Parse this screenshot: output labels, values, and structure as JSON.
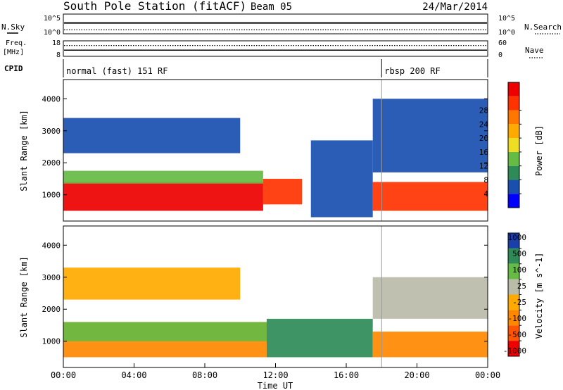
{
  "chart_data": [
    {
      "type": "line",
      "title": "South Pole Station (fitACF)",
      "beam": "Beam 05",
      "date": "24/Mar/2014",
      "left_label": "N.Sky",
      "right_label": "N.Search",
      "y_ticks_left": [
        "10^5",
        "10^0"
      ],
      "y_ticks_right": [
        "10^5",
        "10^0"
      ],
      "series": [
        {
          "name": "N.Sky",
          "style": "solid",
          "level": 0.55
        },
        {
          "name": "N.Search",
          "style": "dotted",
          "level": 0.2
        }
      ]
    },
    {
      "type": "line",
      "left_label_top": "Freq.",
      "left_label_bottom": "[MHz]",
      "right_label": "Nave",
      "y_ticks_left": [
        "18",
        "8"
      ],
      "y_ticks_right": [
        "60",
        "0"
      ],
      "series": [
        {
          "name": "Freq.",
          "style": "solid",
          "value": 12
        },
        {
          "name": "Nave",
          "style": "dotted",
          "value": 42
        }
      ]
    },
    {
      "type": "table",
      "label": "CPID",
      "segments": [
        {
          "text": "normal (fast) 151 RF",
          "start_hour": 0
        },
        {
          "text": "rbsp 200 RF",
          "start_hour": 18
        }
      ]
    },
    {
      "type": "heatmap",
      "ylabel": "Slant Range [km]",
      "ylim": [
        180,
        4600
      ],
      "yticks": [
        1000,
        2000,
        3000,
        4000
      ],
      "colorbar_label": "Power [dB]",
      "colorbar_ticks": [
        "4",
        "8",
        "12",
        "16",
        "20",
        "24",
        "28"
      ],
      "colors": [
        "#0000ff",
        "#1a4fb0",
        "#2e8b57",
        "#66bb44",
        "#eedd22",
        "#ffaa00",
        "#ff7700",
        "#ff3300",
        "#ee0000"
      ],
      "layers": [
        {
          "x_start": 0,
          "x_end": 11.3,
          "y_low": 500,
          "y_high": 1400,
          "color": "#ee0000"
        },
        {
          "x_start": 11.3,
          "x_end": 13.5,
          "y_low": 700,
          "y_high": 1500,
          "color": "#ff3300"
        },
        {
          "x_start": 17.5,
          "x_end": 24,
          "y_low": 500,
          "y_high": 1400,
          "color": "#ff3300"
        },
        {
          "x_start": 0,
          "x_end": 11.3,
          "y_low": 1350,
          "y_high": 1750,
          "color": "#66bb44"
        },
        {
          "x_start": 14,
          "x_end": 17.5,
          "y_low": 300,
          "y_high": 2700,
          "color": "#1a4fb0"
        },
        {
          "x_start": 17.5,
          "x_end": 24,
          "y_low": 1700,
          "y_high": 4000,
          "color": "#1a4fb0"
        },
        {
          "x_start": 0,
          "x_end": 10,
          "y_low": 2300,
          "y_high": 3400,
          "color": "#1a4fb0"
        }
      ]
    },
    {
      "type": "heatmap",
      "ylabel": "Slant Range [km]",
      "xlabel": "Time UT",
      "ylim": [
        180,
        4600
      ],
      "yticks": [
        1000,
        2000,
        3000,
        4000
      ],
      "x_ticks": [
        "00:00",
        "04:00",
        "08:00",
        "12:00",
        "16:00",
        "20:00",
        "00:00"
      ],
      "colorbar_label": "Velocity [m s^-1]",
      "colorbar_ticks": [
        "1000",
        "500",
        "100",
        "25",
        "-25",
        "-100",
        "-500",
        "-1000"
      ],
      "colors": [
        "#1a3fa8",
        "#2e8b57",
        "#66bb44",
        "#bbbbaa",
        "#ffaa00",
        "#ff8800",
        "#ff5500",
        "#ee0000"
      ],
      "layers": [
        {
          "x_start": 0,
          "x_end": 11.5,
          "y_low": 500,
          "y_high": 1600,
          "color": "#ff8800"
        },
        {
          "x_start": 0,
          "x_end": 11.5,
          "y_low": 1000,
          "y_high": 1600,
          "color": "#66bb44"
        },
        {
          "x_start": 11.5,
          "x_end": 17.5,
          "y_low": 500,
          "y_high": 1700,
          "color": "#2e8b57"
        },
        {
          "x_start": 17.5,
          "x_end": 24,
          "y_low": 500,
          "y_high": 1300,
          "color": "#ff8800"
        },
        {
          "x_start": 17.5,
          "x_end": 24,
          "y_low": 1700,
          "y_high": 3000,
          "color": "#bbbbaa"
        },
        {
          "x_start": 0,
          "x_end": 10,
          "y_low": 2300,
          "y_high": 3300,
          "color": "#ffaa00"
        }
      ]
    }
  ]
}
